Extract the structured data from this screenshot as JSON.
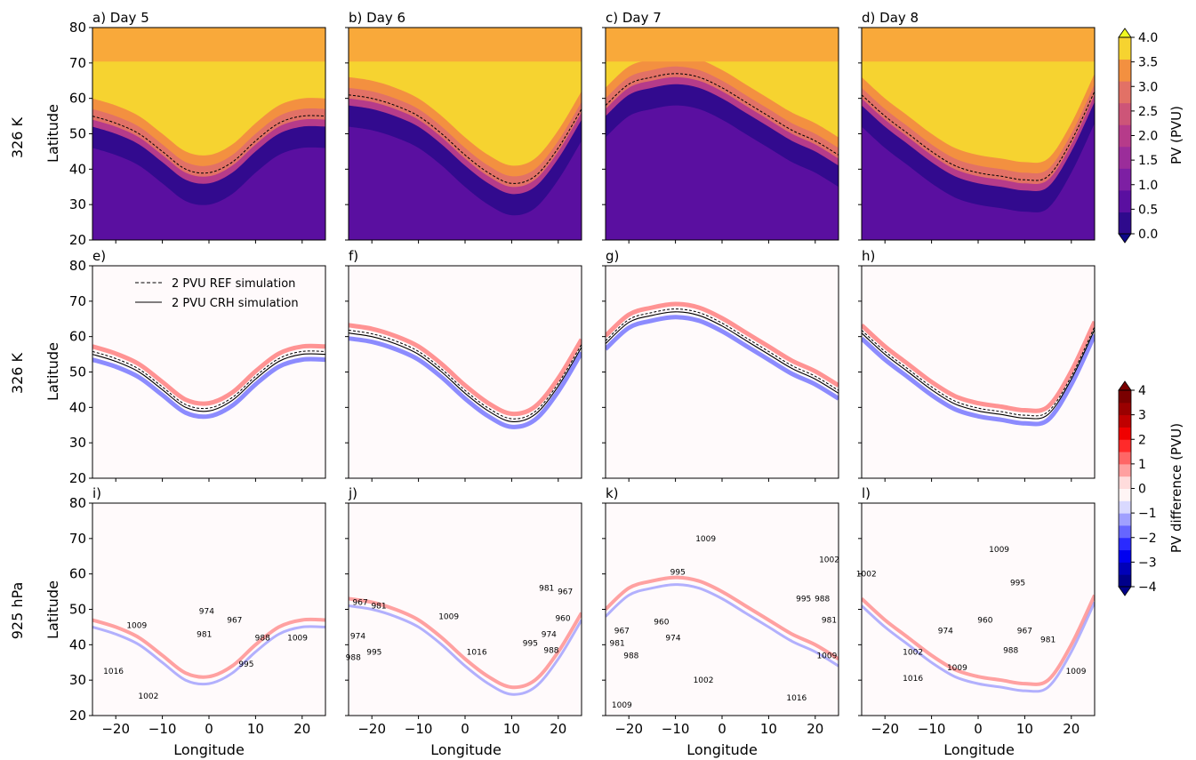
{
  "figure": {
    "row_labels": [
      "326 K",
      "326 K",
      "925 hPa"
    ],
    "ylabel": "Latitude",
    "xlabel": "Longitude",
    "panel_titles": [
      "a) Day 5",
      "b) Day 6",
      "c) Day 7",
      "d) Day 8",
      "e)",
      "f)",
      "g)",
      "h)",
      "i)",
      "j)",
      "k)",
      "l)"
    ],
    "legend": {
      "ref": "2 PVU REF simulation",
      "crh": "2 PVU CRH simulation"
    },
    "colorbar_pv": {
      "label": "PV (PVU)",
      "ticks": [
        "0.0",
        "0.5",
        "1.0",
        "1.5",
        "2.0",
        "2.5",
        "3.0",
        "3.5",
        "4.0"
      ],
      "colors": [
        "#2e0a8c",
        "#5a0fa0",
        "#7d1fa3",
        "#9b2d9a",
        "#b63b8a",
        "#cd5578",
        "#e27166",
        "#f39040",
        "#f6d330"
      ],
      "under_color": "#0d0887",
      "over_color": "#f0f921"
    },
    "colorbar_diff": {
      "label": "PV difference (PVU)",
      "ticks": [
        "−4",
        "−3",
        "−2",
        "−1",
        "0",
        "1",
        "2",
        "3",
        "4"
      ],
      "colors": [
        "#00008a",
        "#0000b8",
        "#0000f0",
        "#2a2aff",
        "#6666ff",
        "#a0a0ff",
        "#d9d9ff",
        "#fff5f5",
        "#ffdcdc",
        "#ffa0a0",
        "#ff6666",
        "#ff2a2a",
        "#f00000",
        "#c00000",
        "#9a0000",
        "#7a0000"
      ]
    }
  },
  "chart_data": [
    {
      "panel": "a",
      "type": "heatmap",
      "title": "a) Day 5",
      "variable": "PV at 326 K",
      "xlim": [
        -25,
        25
      ],
      "ylim": [
        20,
        80
      ],
      "yticks": [
        20,
        30,
        40,
        50,
        60,
        70,
        80
      ],
      "pv2_contour_lat": [
        [
          -25,
          55
        ],
        [
          -20,
          53
        ],
        [
          -15,
          50
        ],
        [
          -10,
          45
        ],
        [
          -5,
          40
        ],
        [
          0,
          39
        ],
        [
          5,
          42
        ],
        [
          10,
          48
        ],
        [
          15,
          53
        ],
        [
          20,
          55
        ],
        [
          25,
          55
        ]
      ]
    },
    {
      "panel": "b",
      "type": "heatmap",
      "title": "b) Day 6",
      "variable": "PV at 326 K",
      "xlim": [
        -25,
        25
      ],
      "ylim": [
        20,
        80
      ],
      "pv2_contour_lat": [
        [
          -25,
          61
        ],
        [
          -20,
          60
        ],
        [
          -15,
          58
        ],
        [
          -10,
          55
        ],
        [
          -5,
          50
        ],
        [
          0,
          44
        ],
        [
          5,
          39
        ],
        [
          10,
          36
        ],
        [
          15,
          38
        ],
        [
          20,
          46
        ],
        [
          25,
          57
        ]
      ]
    },
    {
      "panel": "c",
      "type": "heatmap",
      "title": "c) Day 7",
      "variable": "PV at 326 K",
      "xlim": [
        -25,
        25
      ],
      "ylim": [
        20,
        80
      ],
      "pv2_contour_lat": [
        [
          -25,
          58
        ],
        [
          -20,
          64
        ],
        [
          -15,
          66
        ],
        [
          -10,
          67
        ],
        [
          -5,
          66
        ],
        [
          0,
          63
        ],
        [
          5,
          59
        ],
        [
          10,
          55
        ],
        [
          15,
          51
        ],
        [
          20,
          48
        ],
        [
          25,
          44
        ]
      ]
    },
    {
      "panel": "d",
      "type": "heatmap",
      "title": "d) Day 8",
      "variable": "PV at 326 K",
      "xlim": [
        -25,
        25
      ],
      "ylim": [
        20,
        80
      ],
      "pv2_contour_lat": [
        [
          -25,
          61
        ],
        [
          -20,
          55
        ],
        [
          -15,
          50
        ],
        [
          -10,
          45
        ],
        [
          -5,
          41
        ],
        [
          0,
          39
        ],
        [
          5,
          38
        ],
        [
          10,
          37
        ],
        [
          15,
          38
        ],
        [
          20,
          48
        ],
        [
          25,
          62
        ]
      ]
    },
    {
      "panel": "e",
      "type": "heatmap",
      "title": "e)",
      "variable": "PV difference at 326 K",
      "xlim": [
        -25,
        25
      ],
      "ylim": [
        20,
        80
      ],
      "vmin": -4,
      "vmax": 4
    },
    {
      "panel": "f",
      "type": "heatmap",
      "title": "f)",
      "variable": "PV difference at 326 K",
      "xlim": [
        -25,
        25
      ],
      "ylim": [
        20,
        80
      ],
      "vmin": -4,
      "vmax": 4
    },
    {
      "panel": "g",
      "type": "heatmap",
      "title": "g)",
      "variable": "PV difference at 326 K",
      "xlim": [
        -25,
        25
      ],
      "ylim": [
        20,
        80
      ],
      "vmin": -4,
      "vmax": 4
    },
    {
      "panel": "h",
      "type": "heatmap",
      "title": "h)",
      "variable": "PV difference at 326 K",
      "xlim": [
        -25,
        25
      ],
      "ylim": [
        20,
        80
      ],
      "vmin": -4,
      "vmax": 4
    },
    {
      "panel": "i",
      "type": "heatmap",
      "title": "i)",
      "variable": "PV difference at 925 hPa with sea-level pressure contours",
      "xlim": [
        -25,
        25
      ],
      "ylim": [
        20,
        80
      ],
      "pressure_labels": [
        {
          "text": "974",
          "lon": -0.5,
          "lat": 49.5
        },
        {
          "text": "967",
          "lon": 5.5,
          "lat": 47
        },
        {
          "text": "981",
          "lon": -1,
          "lat": 43
        },
        {
          "text": "1009",
          "lon": -15.5,
          "lat": 45.5
        },
        {
          "text": "1016",
          "lon": -20.5,
          "lat": 32.5
        },
        {
          "text": "1002",
          "lon": -13,
          "lat": 25.5
        },
        {
          "text": "995",
          "lon": 8,
          "lat": 34.5
        },
        {
          "text": "988",
          "lon": 11.5,
          "lat": 42
        },
        {
          "text": "1009",
          "lon": 19,
          "lat": 42
        }
      ]
    },
    {
      "panel": "j",
      "type": "heatmap",
      "title": "j)",
      "variable": "PV difference at 925 hPa with sea-level pressure contours",
      "xlim": [
        -25,
        25
      ],
      "ylim": [
        20,
        80
      ],
      "pressure_labels": [
        {
          "text": "981",
          "lon": 17.5,
          "lat": 56
        },
        {
          "text": "967",
          "lon": 21.5,
          "lat": 55
        },
        {
          "text": "960",
          "lon": 21,
          "lat": 47.5
        },
        {
          "text": "974",
          "lon": 18,
          "lat": 43
        },
        {
          "text": "988",
          "lon": 18.5,
          "lat": 38.5
        },
        {
          "text": "995",
          "lon": 14,
          "lat": 40.5
        },
        {
          "text": "1009",
          "lon": -3.5,
          "lat": 48
        },
        {
          "text": "1016",
          "lon": 2.5,
          "lat": 38
        },
        {
          "text": "967",
          "lon": -22.5,
          "lat": 52
        },
        {
          "text": "981",
          "lon": -18.5,
          "lat": 51
        },
        {
          "text": "974",
          "lon": -23,
          "lat": 42.5
        },
        {
          "text": "988",
          "lon": -24,
          "lat": 36.5
        },
        {
          "text": "995",
          "lon": -19.5,
          "lat": 38
        }
      ]
    },
    {
      "panel": "k",
      "type": "heatmap",
      "title": "k)",
      "variable": "PV difference at 925 hPa with sea-level pressure contours",
      "xlim": [
        -25,
        25
      ],
      "ylim": [
        20,
        80
      ],
      "pressure_labels": [
        {
          "text": "1009",
          "lon": -3.5,
          "lat": 70
        },
        {
          "text": "995",
          "lon": -9.5,
          "lat": 60.5
        },
        {
          "text": "960",
          "lon": -13,
          "lat": 46.5
        },
        {
          "text": "967",
          "lon": -21.5,
          "lat": 44
        },
        {
          "text": "981",
          "lon": -22.5,
          "lat": 40.5
        },
        {
          "text": "974",
          "lon": -10.5,
          "lat": 42
        },
        {
          "text": "988",
          "lon": -19.5,
          "lat": 37
        },
        {
          "text": "1002",
          "lon": -4,
          "lat": 30
        },
        {
          "text": "1009",
          "lon": -21.5,
          "lat": 23
        },
        {
          "text": "1002",
          "lon": 23,
          "lat": 64
        },
        {
          "text": "995",
          "lon": 17.5,
          "lat": 53
        },
        {
          "text": "988",
          "lon": 21.5,
          "lat": 53
        },
        {
          "text": "981",
          "lon": 23,
          "lat": 47
        },
        {
          "text": "1009",
          "lon": 22.5,
          "lat": 37
        },
        {
          "text": "1016",
          "lon": 16,
          "lat": 25
        }
      ]
    },
    {
      "panel": "l",
      "type": "heatmap",
      "title": "l)",
      "variable": "PV difference at 925 hPa with sea-level pressure contours",
      "xlim": [
        -25,
        25
      ],
      "ylim": [
        20,
        80
      ],
      "xticks": [
        -20,
        -10,
        0,
        10,
        20
      ],
      "pressure_labels": [
        {
          "text": "1009",
          "lon": 4.5,
          "lat": 67
        },
        {
          "text": "1002",
          "lon": -24,
          "lat": 60
        },
        {
          "text": "995",
          "lon": 8.5,
          "lat": 57.5
        },
        {
          "text": "960",
          "lon": 1.5,
          "lat": 47
        },
        {
          "text": "967",
          "lon": 10,
          "lat": 44
        },
        {
          "text": "974",
          "lon": -7,
          "lat": 44
        },
        {
          "text": "981",
          "lon": 15,
          "lat": 41.5
        },
        {
          "text": "988",
          "lon": 7,
          "lat": 38.5
        },
        {
          "text": "1002",
          "lon": -14,
          "lat": 38
        },
        {
          "text": "1009",
          "lon": -4.5,
          "lat": 33.5
        },
        {
          "text": "1016",
          "lon": -14,
          "lat": 30.5
        },
        {
          "text": "1009",
          "lon": 21,
          "lat": 32.5
        }
      ]
    }
  ]
}
